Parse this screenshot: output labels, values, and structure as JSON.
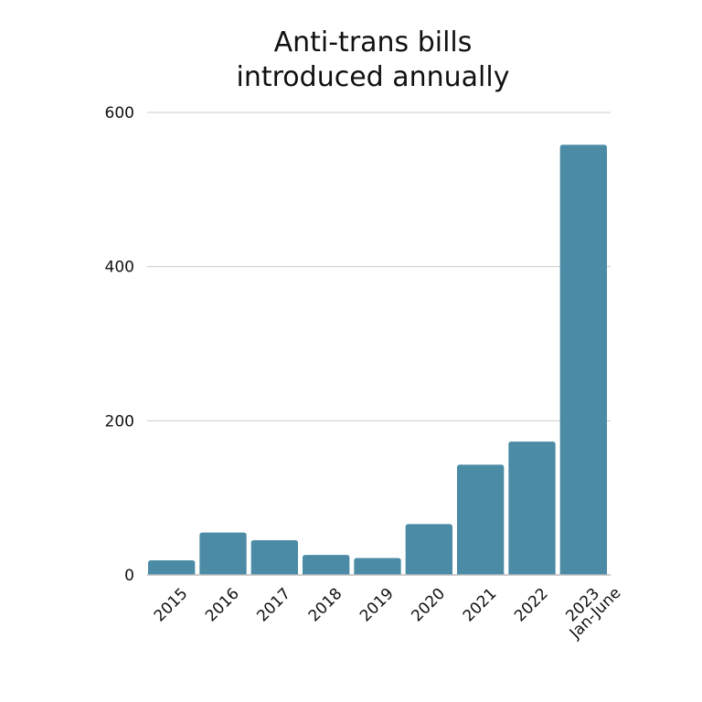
{
  "chart_data": {
    "type": "bar",
    "title_lines": [
      "Anti-trans bills",
      "introduced annually"
    ],
    "categories": [
      "2015",
      "2016",
      "2017",
      "2018",
      "2019",
      "2020",
      "2021",
      "2022",
      "2023"
    ],
    "category_sublabels": [
      "",
      "",
      "",
      "",
      "",
      "",
      "",
      "",
      "Jan-June"
    ],
    "values": [
      19,
      55,
      45,
      26,
      22,
      66,
      143,
      173,
      558
    ],
    "xlabel": "",
    "ylabel": "",
    "ylim": [
      0,
      600
    ],
    "yticks": [
      "0",
      "200",
      "400",
      "600"
    ],
    "grid": true,
    "bar_color": "#4b8ba5",
    "grid_color": "#cccccc"
  }
}
